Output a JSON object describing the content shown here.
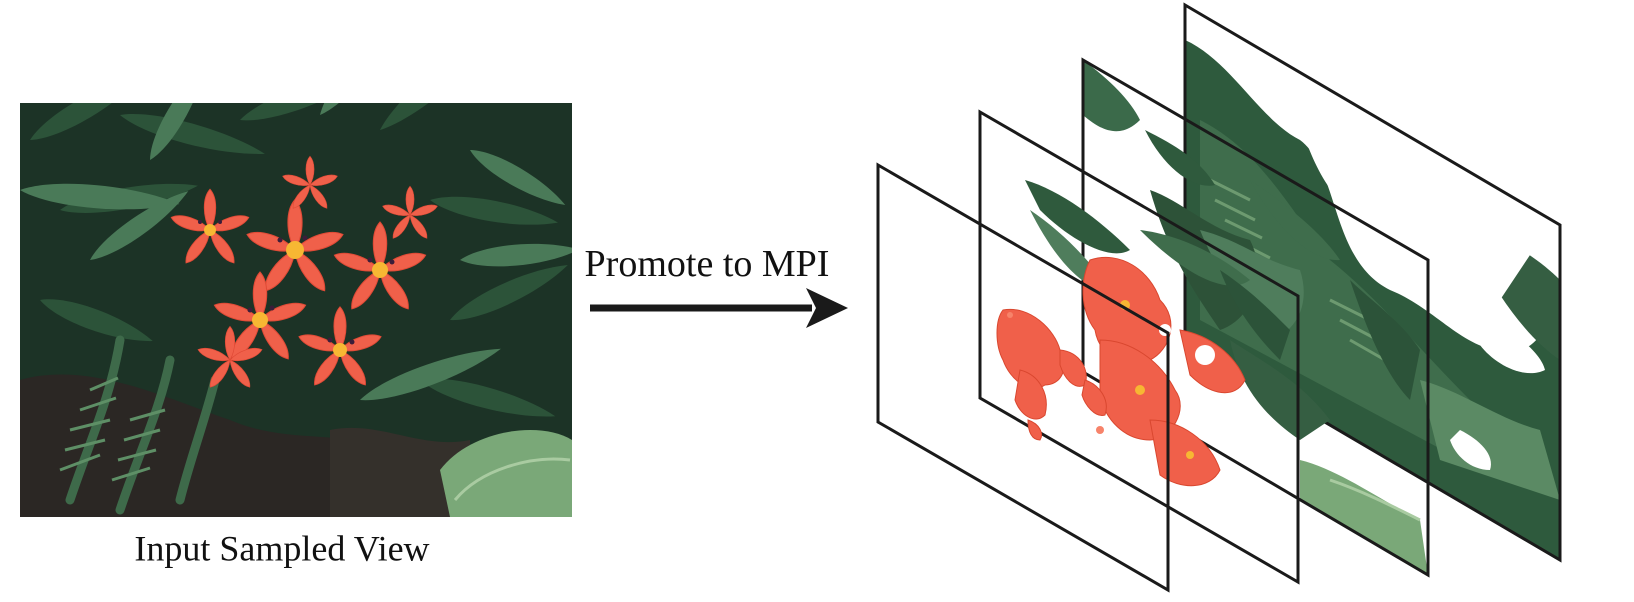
{
  "diagram": {
    "input_caption": "Input Sampled View",
    "arrow_label": "Promote to MPI",
    "colors": {
      "ink": "#1a1a1a",
      "leaf_dark": "#1f3b2a",
      "leaf_mid": "#2f5a3d",
      "leaf_light": "#4f7d5c",
      "flower": "#f0604a",
      "flower_light": "#f7836a",
      "flower_center": "#f7b733",
      "soil": "#2a2622"
    },
    "mpi_planes": 4
  }
}
